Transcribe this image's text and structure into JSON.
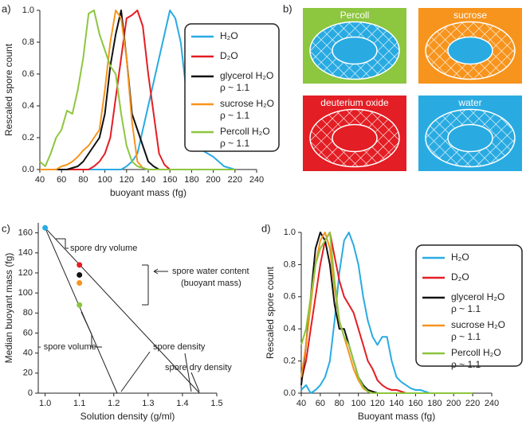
{
  "chart_data": [
    {
      "type": "line",
      "label": "a)",
      "x_label": "buoyant mass (fg)",
      "y_label": "Rescaled spore count",
      "x": [
        40,
        45,
        50,
        55,
        60,
        65,
        70,
        75,
        80,
        85,
        90,
        95,
        100,
        105,
        110,
        115,
        120,
        125,
        130,
        135,
        140,
        145,
        150,
        155,
        160,
        165,
        170,
        175,
        180,
        185,
        190,
        195,
        200,
        205,
        210,
        215,
        220
      ],
      "series": [
        {
          "name": "H₂O",
          "color": "#29abe2",
          "values": [
            0,
            0,
            0,
            0,
            0,
            0,
            0,
            0,
            0,
            0,
            0,
            0,
            0,
            0,
            0,
            0,
            0.02,
            0.05,
            0.1,
            0.25,
            0.4,
            0.55,
            0.7,
            0.85,
            1.0,
            0.95,
            0.8,
            0.5,
            0.25,
            0.15,
            0.12,
            0.1,
            0.08,
            0.05,
            0.02,
            0.01,
            0
          ]
        },
        {
          "name": "D₂O",
          "color": "#e31e24",
          "values": [
            0,
            0,
            0,
            0,
            0,
            0,
            0,
            0,
            0,
            0,
            0.02,
            0.05,
            0.1,
            0.2,
            0.45,
            0.7,
            0.95,
            0.97,
            1.0,
            0.9,
            0.6,
            0.35,
            0.1,
            0.03,
            0,
            0,
            0,
            0,
            0,
            0,
            0,
            0,
            0,
            0,
            0,
            0,
            0
          ]
        },
        {
          "name": "glycerol H₂O\nρ ~ 1.1",
          "color": "#111111",
          "values": [
            0,
            0,
            0,
            0,
            0,
            0,
            0.01,
            0.02,
            0.05,
            0.1,
            0.15,
            0.2,
            0.35,
            0.65,
            0.85,
            1.0,
            0.7,
            0.35,
            0.25,
            0.15,
            0.05,
            0.02,
            0,
            0,
            0,
            0,
            0,
            0,
            0,
            0,
            0,
            0,
            0,
            0,
            0,
            0,
            0
          ]
        },
        {
          "name": "sucrose H₂O\nρ ~ 1.1",
          "color": "#f7941d",
          "values": [
            0,
            0,
            0,
            0,
            0.02,
            0.03,
            0.05,
            0.08,
            0.12,
            0.15,
            0.2,
            0.25,
            0.5,
            0.8,
            1.0,
            0.95,
            0.7,
            0.3,
            0.05,
            0.01,
            0,
            0,
            0,
            0,
            0,
            0,
            0,
            0,
            0,
            0,
            0,
            0,
            0,
            0,
            0,
            0,
            0
          ]
        },
        {
          "name": "Percoll H₂O\nρ ~ 1.1",
          "color": "#8dc63f",
          "values": [
            0.05,
            0.02,
            0.1,
            0.2,
            0.25,
            0.37,
            0.35,
            0.5,
            0.7,
            0.98,
            1.0,
            0.85,
            0.75,
            0.65,
            0.6,
            0.35,
            0.15,
            0.05,
            0.02,
            0.01,
            0,
            0,
            0,
            0,
            0,
            0,
            0,
            0,
            0,
            0,
            0,
            0,
            0,
            0,
            0,
            0,
            0
          ]
        }
      ],
      "xlim": [
        40,
        240
      ],
      "xticks": [
        40,
        60,
        80,
        100,
        120,
        140,
        160,
        180,
        200,
        220,
        240
      ],
      "ylim": [
        0,
        1.0
      ],
      "yticks": [
        {
          "value": 0,
          "label": "0.0"
        },
        0.2,
        0.4,
        0.6,
        0.8,
        {
          "value": 1,
          "label": "1.0"
        }
      ]
    },
    {
      "type": "scatter",
      "label": "c)",
      "x_label": "Solution density (g/ml)",
      "y_label": "Median buoyant mass (fg)",
      "x": [
        1.0,
        1.1,
        1.1,
        1.1,
        1.1
      ],
      "y": [
        165,
        128,
        118,
        110,
        88
      ],
      "colors": [
        "#29abe2",
        "#e31e24",
        "#111111",
        "#f7941d",
        "#8dc63f"
      ],
      "lines": [
        {
          "x": [
            1.0,
            1.21
          ],
          "y": [
            165,
            0
          ]
        },
        {
          "x": [
            1.0,
            1.45
          ],
          "y": [
            165,
            0
          ]
        }
      ],
      "annotations": [
        "spore dry volume",
        "spore water content",
        "(buoyant mass)",
        "- spore volume",
        "spore density",
        "spore dry density"
      ],
      "xlim": [
        0.98,
        1.5
      ],
      "xticks": [
        {
          "value": 1,
          "label": "1.0"
        },
        1.1,
        1.2,
        1.3,
        1.4,
        1.5
      ],
      "ylim": [
        0,
        170
      ],
      "yticks": [
        0,
        20,
        40,
        60,
        80,
        100,
        120,
        140,
        160
      ]
    },
    {
      "type": "line",
      "label": "d)",
      "x_label": "Buoyant mass (fg)",
      "y_label": "Rescaled spore count",
      "x": [
        40,
        45,
        50,
        55,
        60,
        65,
        70,
        75,
        80,
        85,
        90,
        95,
        100,
        105,
        110,
        115,
        120,
        125,
        130,
        135,
        140,
        145,
        150,
        155,
        160,
        165,
        170,
        175,
        180,
        185,
        190,
        195,
        200,
        205,
        210,
        215,
        220
      ],
      "series": [
        {
          "name": "H₂O",
          "color": "#29abe2",
          "values": [
            0.02,
            0.05,
            0,
            0.02,
            0.05,
            0.1,
            0.2,
            0.45,
            0.75,
            0.95,
            1.0,
            0.92,
            0.8,
            0.6,
            0.45,
            0.35,
            0.3,
            0.35,
            0.35,
            0.2,
            0.1,
            0.07,
            0.05,
            0.03,
            0.02,
            0.02,
            0.01,
            0,
            0,
            0,
            0,
            0,
            0,
            0,
            0,
            0,
            0
          ]
        },
        {
          "name": "D₂O",
          "color": "#e31e24",
          "values": [
            0.08,
            0.2,
            0.4,
            0.6,
            0.8,
            0.95,
            1.0,
            0.85,
            0.7,
            0.6,
            0.55,
            0.5,
            0.4,
            0.3,
            0.2,
            0.15,
            0.08,
            0.05,
            0.03,
            0.02,
            0.02,
            0.01,
            0,
            0,
            0,
            0,
            0,
            0,
            0,
            0,
            0,
            0,
            0,
            0,
            0,
            0,
            0
          ]
        },
        {
          "name": "glycerol H₂O\nρ ~ 1.1",
          "color": "#111111",
          "values": [
            0.05,
            0.3,
            0.6,
            0.9,
            1.0,
            0.95,
            0.8,
            0.55,
            0.4,
            0.4,
            0.3,
            0.2,
            0.1,
            0.05,
            0.02,
            0.01,
            0,
            0,
            0,
            0,
            0,
            0,
            0,
            0,
            0,
            0,
            0,
            0,
            0,
            0,
            0,
            0,
            0,
            0,
            0,
            0,
            0
          ]
        },
        {
          "name": "sucrose H₂O\nρ ~ 1.1",
          "color": "#f7941d",
          "values": [
            0.1,
            0.3,
            0.55,
            0.8,
            0.95,
            1.0,
            0.9,
            0.65,
            0.45,
            0.35,
            0.25,
            0.15,
            0.08,
            0.03,
            0.01,
            0,
            0,
            0,
            0,
            0,
            0,
            0,
            0,
            0,
            0,
            0,
            0,
            0,
            0,
            0,
            0,
            0,
            0,
            0,
            0,
            0,
            0
          ]
        },
        {
          "name": "Percoll H₂O\nρ ~ 1.1",
          "color": "#8dc63f",
          "values": [
            0.3,
            0.4,
            0.6,
            0.8,
            0.9,
            0.95,
            1.0,
            0.7,
            0.45,
            0.35,
            0.3,
            0.2,
            0.1,
            0.04,
            0.01,
            0,
            0,
            0,
            0,
            0,
            0,
            0,
            0,
            0,
            0,
            0,
            0,
            0,
            0,
            0,
            0,
            0,
            0,
            0,
            0,
            0,
            0
          ]
        }
      ],
      "xlim": [
        40,
        240
      ],
      "xticks": [
        40,
        60,
        80,
        100,
        120,
        140,
        160,
        180,
        200,
        220,
        240
      ],
      "ylim": [
        0,
        1.0
      ],
      "yticks": [
        {
          "value": 0,
          "label": "0.0"
        },
        0.2,
        0.4,
        0.6,
        0.8,
        {
          "value": 1,
          "label": "1.0"
        }
      ]
    }
  ],
  "diagram": {
    "label": "b)",
    "panels": [
      {
        "label": "Percoll",
        "color": "#8dc63f",
        "ring": "#29abe2",
        "core": "#29abe2"
      },
      {
        "label": "sucrose",
        "color": "#f7941d",
        "ring": "#f7941d",
        "core": "#29abe2"
      },
      {
        "label": "deuterium oxide",
        "color": "#e31e24",
        "ring": "#e31e24",
        "core": "#e31e24"
      },
      {
        "label": "water",
        "color": "#29abe2",
        "ring": "#29abe2",
        "core": "#29abe2"
      }
    ]
  }
}
